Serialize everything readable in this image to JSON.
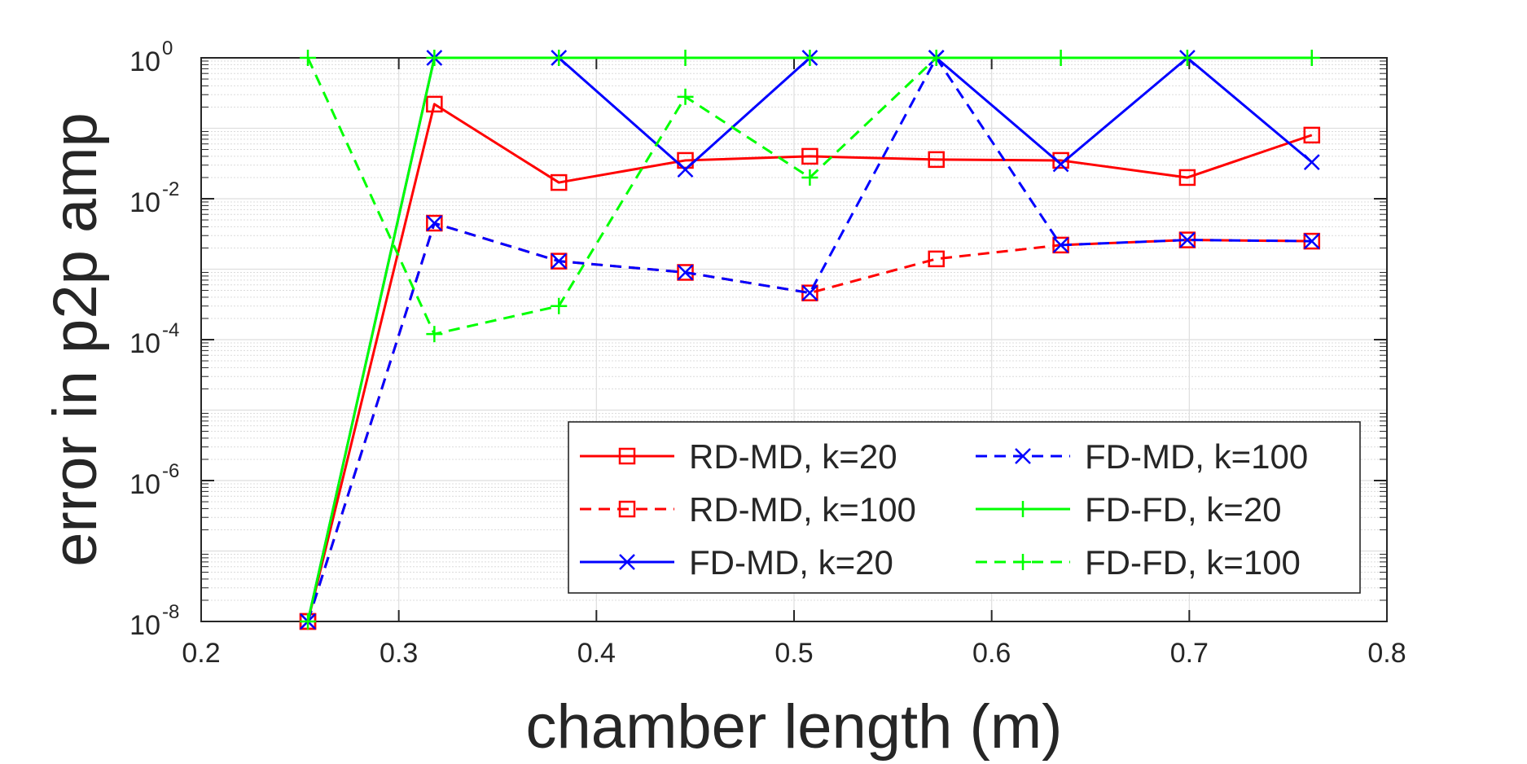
{
  "chart_data": {
    "type": "line",
    "xlabel": "chamber length (m)",
    "ylabel": "error in p2p amp",
    "xlim": [
      0.2,
      0.8
    ],
    "ylim": [
      1e-08,
      1
    ],
    "yscale": "log",
    "grid": true,
    "legend_position": "bottom-right",
    "legend_columns": 2,
    "x_ticks": [
      {
        "value": 0.2,
        "label": "0.2"
      },
      {
        "value": 0.3,
        "label": "0.3"
      },
      {
        "value": 0.4,
        "label": "0.4"
      },
      {
        "value": 0.5,
        "label": "0.5"
      },
      {
        "value": 0.6,
        "label": "0.6"
      },
      {
        "value": 0.7,
        "label": "0.7"
      },
      {
        "value": 0.8,
        "label": "0.8"
      }
    ],
    "y_ticks": [
      {
        "value": 1,
        "base": "10",
        "exp": "0"
      },
      {
        "value": 0.01,
        "base": "10",
        "exp": "-2"
      },
      {
        "value": 0.0001,
        "base": "10",
        "exp": "-4"
      },
      {
        "value": 1e-06,
        "base": "10",
        "exp": "-6"
      },
      {
        "value": 1e-08,
        "base": "10",
        "exp": "-8"
      }
    ],
    "x": [
      0.254,
      0.318,
      0.381,
      0.445,
      0.508,
      0.572,
      0.635,
      0.699,
      0.762
    ],
    "series": [
      {
        "name": "RD-MD, k=20",
        "color": "#ff0000",
        "dash": "solid",
        "marker": "square",
        "values": [
          1e-08,
          0.22,
          0.017,
          0.035,
          0.04,
          0.036,
          0.035,
          0.02,
          0.08
        ]
      },
      {
        "name": "RD-MD, k=100",
        "color": "#ff0000",
        "dash": "dashed",
        "marker": "square",
        "values": [
          1e-08,
          0.0045,
          0.0013,
          0.0009,
          0.00046,
          0.0014,
          0.0022,
          0.0026,
          0.0025
        ]
      },
      {
        "name": "FD-MD, k=20",
        "color": "#0000ff",
        "dash": "solid",
        "marker": "x",
        "values": [
          1e-08,
          1,
          1,
          0.026,
          1,
          1,
          0.031,
          1,
          0.033
        ]
      },
      {
        "name": "FD-MD, k=100",
        "color": "#0000ff",
        "dash": "dashed",
        "marker": "x",
        "values": [
          1e-08,
          0.0045,
          0.0013,
          0.0009,
          0.00046,
          1,
          0.0022,
          0.0026,
          0.0025
        ]
      },
      {
        "name": "FD-FD, k=20",
        "color": "#00ff00",
        "dash": "solid",
        "marker": "plus",
        "values": [
          1e-08,
          1,
          1,
          1,
          1,
          1,
          1,
          1,
          1
        ]
      },
      {
        "name": "FD-FD, k=100",
        "color": "#00ff00",
        "dash": "dashed",
        "marker": "plus",
        "values": [
          1,
          0.00012,
          0.0003,
          0.28,
          0.02,
          1,
          null,
          null,
          null
        ]
      }
    ],
    "legend_order": [
      0,
      3,
      1,
      4,
      2,
      5
    ]
  }
}
